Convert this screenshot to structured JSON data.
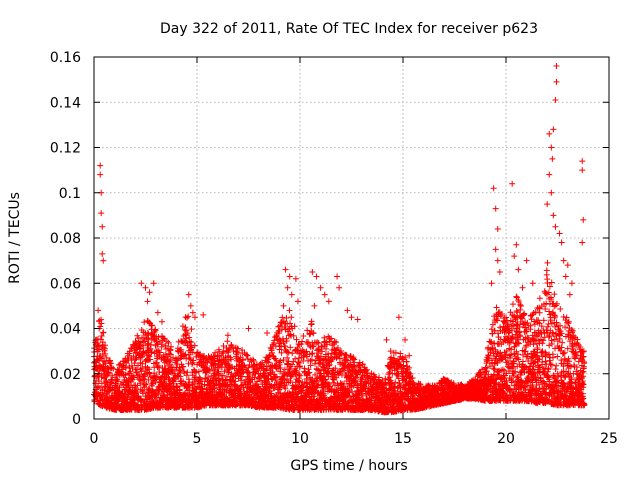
{
  "chart_data": {
    "type": "scatter",
    "title": "Day 322 of 2011, Rate Of TEC Index for receiver p623",
    "xlabel": "GPS time / hours",
    "ylabel": "ROTI / TECUs",
    "xlim": [
      0,
      25
    ],
    "ylim": [
      0,
      0.16
    ],
    "x_ticks": [
      "0",
      "5",
      "10",
      "15",
      "20",
      "25"
    ],
    "y_ticks": [
      "0",
      "0.02",
      "0.04",
      "0.06",
      "0.08",
      "0.1",
      "0.12",
      "0.14",
      "0.16"
    ],
    "grid": true,
    "marker": "+",
    "color": "#ff0000",
    "envelope": {
      "description": "sampled upper/lower envelope of the dense point cloud (hours, TECU)",
      "x": [
        0.0,
        0.3,
        0.6,
        1.0,
        1.5,
        2.0,
        2.5,
        3.0,
        3.5,
        4.0,
        4.5,
        5.0,
        5.5,
        6.0,
        6.5,
        7.0,
        7.5,
        8.0,
        8.5,
        9.0,
        9.5,
        10.0,
        10.5,
        11.0,
        11.5,
        12.0,
        12.5,
        13.0,
        13.5,
        14.0,
        14.5,
        15.0,
        15.5,
        16.0,
        16.5,
        17.0,
        17.5,
        18.0,
        18.5,
        19.0,
        19.5,
        20.0,
        20.5,
        21.0,
        21.5,
        22.0,
        22.5,
        23.0,
        23.5,
        23.8
      ],
      "upper": [
        0.035,
        0.048,
        0.03,
        0.022,
        0.027,
        0.035,
        0.045,
        0.04,
        0.035,
        0.03,
        0.048,
        0.03,
        0.028,
        0.03,
        0.035,
        0.032,
        0.028,
        0.025,
        0.03,
        0.045,
        0.05,
        0.033,
        0.045,
        0.035,
        0.038,
        0.03,
        0.028,
        0.025,
        0.02,
        0.018,
        0.03,
        0.03,
        0.018,
        0.015,
        0.015,
        0.018,
        0.016,
        0.015,
        0.018,
        0.025,
        0.05,
        0.045,
        0.055,
        0.045,
        0.048,
        0.07,
        0.05,
        0.045,
        0.035,
        0.03
      ],
      "lower": [
        0.008,
        0.006,
        0.005,
        0.004,
        0.004,
        0.004,
        0.004,
        0.005,
        0.005,
        0.005,
        0.005,
        0.005,
        0.006,
        0.006,
        0.006,
        0.006,
        0.006,
        0.005,
        0.005,
        0.005,
        0.004,
        0.004,
        0.004,
        0.004,
        0.004,
        0.004,
        0.004,
        0.004,
        0.004,
        0.003,
        0.003,
        0.004,
        0.004,
        0.005,
        0.006,
        0.007,
        0.008,
        0.009,
        0.009,
        0.008,
        0.008,
        0.008,
        0.008,
        0.008,
        0.007,
        0.007,
        0.006,
        0.006,
        0.006,
        0.006
      ]
    },
    "peaks": [
      {
        "x": 0.3,
        "y": 0.112
      },
      {
        "x": 0.3,
        "y": 0.108
      },
      {
        "x": 0.35,
        "y": 0.1
      },
      {
        "x": 0.35,
        "y": 0.091
      },
      {
        "x": 0.4,
        "y": 0.085
      },
      {
        "x": 0.4,
        "y": 0.073
      },
      {
        "x": 0.45,
        "y": 0.07
      },
      {
        "x": 0.2,
        "y": 0.048
      },
      {
        "x": 0.25,
        "y": 0.04
      },
      {
        "x": 2.3,
        "y": 0.06
      },
      {
        "x": 2.5,
        "y": 0.058
      },
      {
        "x": 2.7,
        "y": 0.056
      },
      {
        "x": 2.9,
        "y": 0.06
      },
      {
        "x": 2.6,
        "y": 0.052
      },
      {
        "x": 3.1,
        "y": 0.047
      },
      {
        "x": 3.3,
        "y": 0.043
      },
      {
        "x": 4.6,
        "y": 0.055
      },
      {
        "x": 4.7,
        "y": 0.05
      },
      {
        "x": 4.8,
        "y": 0.047
      },
      {
        "x": 4.9,
        "y": 0.045
      },
      {
        "x": 5.3,
        "y": 0.046
      },
      {
        "x": 6.5,
        "y": 0.037
      },
      {
        "x": 7.5,
        "y": 0.04
      },
      {
        "x": 8.4,
        "y": 0.038
      },
      {
        "x": 9.3,
        "y": 0.066
      },
      {
        "x": 9.5,
        "y": 0.063
      },
      {
        "x": 9.8,
        "y": 0.062
      },
      {
        "x": 9.4,
        "y": 0.058
      },
      {
        "x": 9.6,
        "y": 0.055
      },
      {
        "x": 9.2,
        "y": 0.05
      },
      {
        "x": 9.9,
        "y": 0.052
      },
      {
        "x": 10.6,
        "y": 0.065
      },
      {
        "x": 10.8,
        "y": 0.063
      },
      {
        "x": 11.0,
        "y": 0.058
      },
      {
        "x": 11.2,
        "y": 0.055
      },
      {
        "x": 10.7,
        "y": 0.05
      },
      {
        "x": 11.4,
        "y": 0.052
      },
      {
        "x": 11.8,
        "y": 0.063
      },
      {
        "x": 11.9,
        "y": 0.058
      },
      {
        "x": 12.3,
        "y": 0.048
      },
      {
        "x": 12.5,
        "y": 0.045
      },
      {
        "x": 12.8,
        "y": 0.044
      },
      {
        "x": 14.2,
        "y": 0.035
      },
      {
        "x": 14.4,
        "y": 0.03
      },
      {
        "x": 14.8,
        "y": 0.045
      },
      {
        "x": 15.1,
        "y": 0.035
      },
      {
        "x": 15.3,
        "y": 0.028
      },
      {
        "x": 19.4,
        "y": 0.102
      },
      {
        "x": 19.5,
        "y": 0.093
      },
      {
        "x": 19.6,
        "y": 0.084
      },
      {
        "x": 19.5,
        "y": 0.075
      },
      {
        "x": 19.6,
        "y": 0.07
      },
      {
        "x": 19.7,
        "y": 0.065
      },
      {
        "x": 19.3,
        "y": 0.06
      },
      {
        "x": 20.3,
        "y": 0.104
      },
      {
        "x": 20.5,
        "y": 0.077
      },
      {
        "x": 20.4,
        "y": 0.072
      },
      {
        "x": 20.6,
        "y": 0.066
      },
      {
        "x": 21.0,
        "y": 0.07
      },
      {
        "x": 21.3,
        "y": 0.06
      },
      {
        "x": 20.8,
        "y": 0.058
      },
      {
        "x": 22.1,
        "y": 0.126
      },
      {
        "x": 22.2,
        "y": 0.12
      },
      {
        "x": 22.3,
        "y": 0.128
      },
      {
        "x": 22.25,
        "y": 0.115
      },
      {
        "x": 22.1,
        "y": 0.108
      },
      {
        "x": 22.2,
        "y": 0.1
      },
      {
        "x": 22.0,
        "y": 0.095
      },
      {
        "x": 22.3,
        "y": 0.09
      },
      {
        "x": 22.4,
        "y": 0.085
      },
      {
        "x": 22.45,
        "y": 0.156
      },
      {
        "x": 22.45,
        "y": 0.149
      },
      {
        "x": 22.4,
        "y": 0.141
      },
      {
        "x": 22.6,
        "y": 0.082
      },
      {
        "x": 22.7,
        "y": 0.078
      },
      {
        "x": 22.8,
        "y": 0.07
      },
      {
        "x": 22.9,
        "y": 0.063
      },
      {
        "x": 23.0,
        "y": 0.068
      },
      {
        "x": 23.2,
        "y": 0.06
      },
      {
        "x": 23.1,
        "y": 0.055
      },
      {
        "x": 23.7,
        "y": 0.114
      },
      {
        "x": 23.7,
        "y": 0.11
      },
      {
        "x": 23.75,
        "y": 0.088
      },
      {
        "x": 23.7,
        "y": 0.078
      }
    ]
  }
}
